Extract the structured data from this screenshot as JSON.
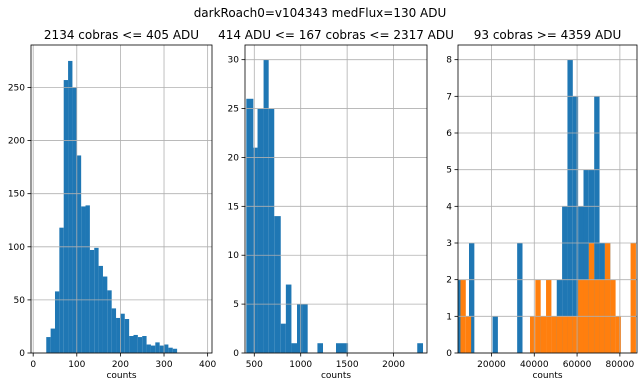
{
  "suptitle": "darkRoach0=v104343    medFlux=130 ADU",
  "chart_data": [
    {
      "type": "histogram",
      "title": "2134 cobras <= 405 ADU",
      "xlabel": "counts",
      "ylabel": "",
      "xlim": [
        -5,
        410
      ],
      "ylim": [
        0,
        290
      ],
      "grid": true,
      "xticks": [
        0,
        100,
        200,
        300,
        400
      ],
      "yticks": [
        0,
        50,
        100,
        150,
        200,
        250
      ],
      "series": [
        {
          "color": "#1f77b4",
          "bins": [
            {
              "x0": 30,
              "x1": 40,
              "value": 15
            },
            {
              "x0": 40,
              "x1": 50,
              "value": 23
            },
            {
              "x0": 50,
              "x1": 60,
              "value": 58
            },
            {
              "x0": 60,
              "x1": 70,
              "value": 118
            },
            {
              "x0": 70,
              "x1": 80,
              "value": 257
            },
            {
              "x0": 80,
              "x1": 90,
              "value": 275
            },
            {
              "x0": 90,
              "x1": 100,
              "value": 250
            },
            {
              "x0": 100,
              "x1": 110,
              "value": 186
            },
            {
              "x0": 110,
              "x1": 120,
              "value": 138
            },
            {
              "x0": 120,
              "x1": 130,
              "value": 139
            },
            {
              "x0": 130,
              "x1": 140,
              "value": 97
            },
            {
              "x0": 140,
              "x1": 150,
              "value": 99
            },
            {
              "x0": 150,
              "x1": 160,
              "value": 82
            },
            {
              "x0": 160,
              "x1": 170,
              "value": 72
            },
            {
              "x0": 170,
              "x1": 180,
              "value": 59
            },
            {
              "x0": 180,
              "x1": 190,
              "value": 42
            },
            {
              "x0": 190,
              "x1": 200,
              "value": 33
            },
            {
              "x0": 200,
              "x1": 210,
              "value": 37
            },
            {
              "x0": 210,
              "x1": 220,
              "value": 32
            },
            {
              "x0": 220,
              "x1": 230,
              "value": 16
            },
            {
              "x0": 230,
              "x1": 240,
              "value": 17
            },
            {
              "x0": 240,
              "x1": 250,
              "value": 15
            },
            {
              "x0": 250,
              "x1": 260,
              "value": 16
            },
            {
              "x0": 260,
              "x1": 270,
              "value": 8
            },
            {
              "x0": 270,
              "x1": 280,
              "value": 7
            },
            {
              "x0": 280,
              "x1": 290,
              "value": 10
            },
            {
              "x0": 290,
              "x1": 300,
              "value": 7
            },
            {
              "x0": 300,
              "x1": 310,
              "value": 8
            },
            {
              "x0": 310,
              "x1": 320,
              "value": 5
            },
            {
              "x0": 320,
              "x1": 330,
              "value": 4
            }
          ]
        }
      ]
    },
    {
      "type": "histogram",
      "title": "414 ADU <= 167 cobras <= 2317 ADU",
      "xlabel": "counts",
      "ylabel": "",
      "xlim": [
        400,
        2360
      ],
      "ylim": [
        0,
        31.5
      ],
      "grid": true,
      "xticks": [
        500,
        1000,
        1500,
        2000
      ],
      "yticks": [
        0,
        5,
        10,
        15,
        20,
        25,
        30
      ],
      "series": [
        {
          "color": "#1f77b4",
          "bins": [
            {
              "x0": 414,
              "x1": 490,
              "value": 26
            },
            {
              "x0": 490,
              "x1": 535,
              "value": 21
            },
            {
              "x0": 535,
              "x1": 600,
              "value": 25
            },
            {
              "x0": 600,
              "x1": 655,
              "value": 30
            },
            {
              "x0": 655,
              "x1": 715,
              "value": 25
            },
            {
              "x0": 715,
              "x1": 785,
              "value": 14
            },
            {
              "x0": 785,
              "x1": 840,
              "value": 3
            },
            {
              "x0": 840,
              "x1": 900,
              "value": 7
            },
            {
              "x0": 900,
              "x1": 960,
              "value": 1
            },
            {
              "x0": 960,
              "x1": 1020,
              "value": 5
            },
            {
              "x0": 1020,
              "x1": 1075,
              "value": 5
            },
            {
              "x0": 1180,
              "x1": 1240,
              "value": 1
            },
            {
              "x0": 1380,
              "x1": 1510,
              "value": 1
            },
            {
              "x0": 2255,
              "x1": 2317,
              "value": 1
            }
          ]
        }
      ]
    },
    {
      "type": "histogram",
      "title": "93 cobras >= 4359 ADU",
      "xlabel": "counts",
      "ylabel": "",
      "xlim": [
        4359,
        88000
      ],
      "ylim": [
        0,
        8.4
      ],
      "grid": true,
      "xticks": [
        20000,
        40000,
        60000,
        80000
      ],
      "yticks": [
        0,
        1,
        2,
        3,
        4,
        5,
        6,
        7,
        8
      ],
      "series": [
        {
          "color": "#1f77b4",
          "bins": [
            {
              "x0": 4400,
              "x1": 7000,
              "value": 2
            },
            {
              "x0": 9500,
              "x1": 12000,
              "value": 3
            },
            {
              "x0": 20500,
              "x1": 23000,
              "value": 1
            },
            {
              "x0": 32000,
              "x1": 34500,
              "value": 3
            },
            {
              "x0": 43000,
              "x1": 45500,
              "value": 1
            },
            {
              "x0": 48000,
              "x1": 50500,
              "value": 1
            },
            {
              "x0": 50500,
              "x1": 53000,
              "value": 2
            },
            {
              "x0": 53000,
              "x1": 55500,
              "value": 4
            },
            {
              "x0": 55500,
              "x1": 58000,
              "value": 8
            },
            {
              "x0": 58000,
              "x1": 60500,
              "value": 7
            },
            {
              "x0": 60500,
              "x1": 63000,
              "value": 4
            },
            {
              "x0": 63000,
              "x1": 65500,
              "value": 5
            },
            {
              "x0": 65500,
              "x1": 68000,
              "value": 5
            },
            {
              "x0": 68000,
              "x1": 70500,
              "value": 7
            },
            {
              "x0": 70500,
              "x1": 73000,
              "value": 3
            },
            {
              "x0": 73000,
              "x1": 75500,
              "value": 3
            },
            {
              "x0": 75500,
              "x1": 78000,
              "value": 1
            }
          ]
        },
        {
          "color": "#ff7f0e",
          "bins": [
            {
              "x0": 5500,
              "x1": 8000,
              "value": 2
            },
            {
              "x0": 8000,
              "x1": 10500,
              "value": 1
            },
            {
              "x0": 38000,
              "x1": 40500,
              "value": 1
            },
            {
              "x0": 40500,
              "x1": 43000,
              "value": 2
            },
            {
              "x0": 43000,
              "x1": 45500,
              "value": 1
            },
            {
              "x0": 45500,
              "x1": 48000,
              "value": 2
            },
            {
              "x0": 48000,
              "x1": 50500,
              "value": 1
            },
            {
              "x0": 50500,
              "x1": 53000,
              "value": 1
            },
            {
              "x0": 53000,
              "x1": 55500,
              "value": 1
            },
            {
              "x0": 55500,
              "x1": 58000,
              "value": 1
            },
            {
              "x0": 58000,
              "x1": 60500,
              "value": 1
            },
            {
              "x0": 60500,
              "x1": 63000,
              "value": 2
            },
            {
              "x0": 63000,
              "x1": 65500,
              "value": 2
            },
            {
              "x0": 65500,
              "x1": 68000,
              "value": 3
            },
            {
              "x0": 68000,
              "x1": 70500,
              "value": 2
            },
            {
              "x0": 70500,
              "x1": 73000,
              "value": 2
            },
            {
              "x0": 73000,
              "x1": 75500,
              "value": 3
            },
            {
              "x0": 75500,
              "x1": 78000,
              "value": 2
            },
            {
              "x0": 78000,
              "x1": 80500,
              "value": 1
            },
            {
              "x0": 85000,
              "x1": 87500,
              "value": 3
            }
          ]
        }
      ]
    }
  ]
}
